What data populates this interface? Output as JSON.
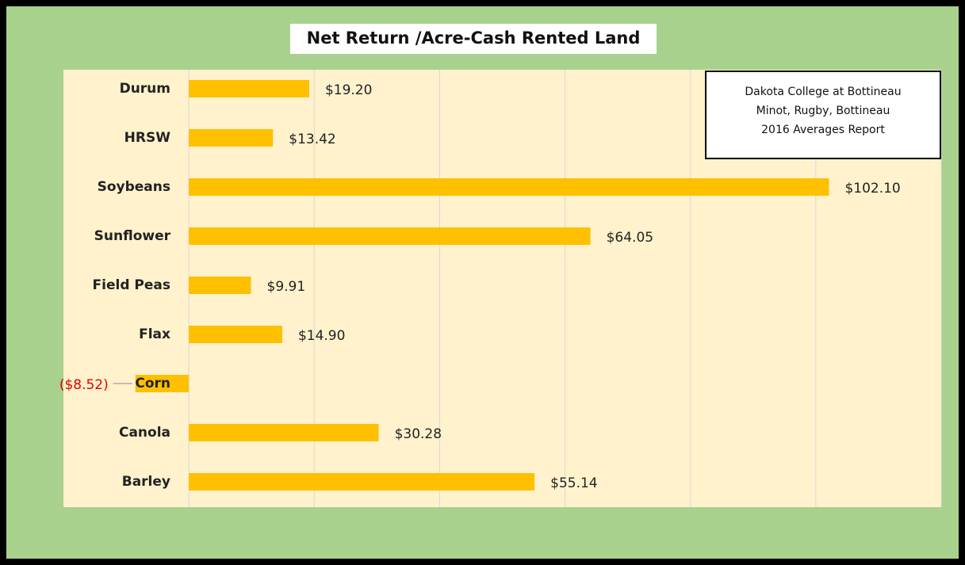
{
  "chart_data": {
    "type": "hbar",
    "title": "Net Return /Acre-Cash Rented Land",
    "annotation": [
      "Dakota College at Bottineau",
      "Minot, Rugby, Bottineau",
      "2016 Averages Report"
    ],
    "categories": [
      "Durum",
      "HRSW",
      "Soybeans",
      "Sunflower",
      "Field Peas",
      "Flax",
      "Corn",
      "Canola",
      "Barley"
    ],
    "values": [
      19.2,
      13.42,
      102.1,
      64.05,
      9.91,
      14.9,
      -8.52,
      30.28,
      55.14
    ],
    "value_labels": [
      "$19.20",
      "$13.42",
      "$102.10",
      "$64.05",
      "$9.91",
      "$14.90",
      "($8.52)",
      "$30.28",
      "$55.14"
    ],
    "color": "#ffc000",
    "negative_label_color": "#e00000",
    "xlim": [
      -20,
      120
    ],
    "xticks": [
      0,
      20,
      40,
      60,
      80,
      100,
      120
    ],
    "grid": true
  }
}
